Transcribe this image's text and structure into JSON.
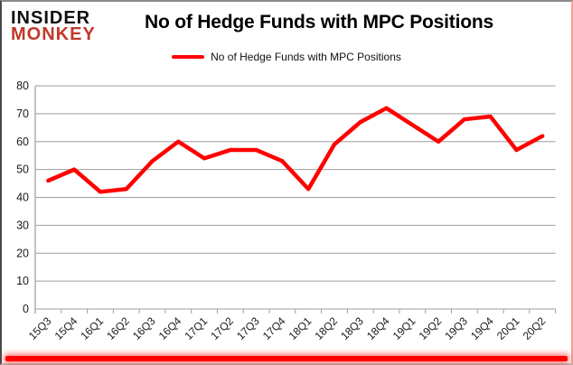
{
  "logo": {
    "line1": "INSIDER",
    "line2": "MONKEY"
  },
  "title": "No of Hedge Funds with MPC Positions",
  "legend": {
    "label": "No of Hedge Funds with MPC Positions"
  },
  "colors": {
    "line": "#ff0000",
    "logo_red": "#c0392b",
    "accent_bar": "#ff0000",
    "grid": "#9e9e9e",
    "axis_text": "#1a1a1a"
  },
  "chart_data": {
    "type": "line",
    "title": "No of Hedge Funds with MPC Positions",
    "categories": [
      "15Q3",
      "15Q4",
      "16Q1",
      "16Q2",
      "16Q3",
      "16Q4",
      "17Q1",
      "17Q2",
      "17Q3",
      "17Q4",
      "18Q1",
      "18Q2",
      "18Q3",
      "18Q4",
      "19Q1",
      "19Q2",
      "19Q3",
      "19Q4",
      "20Q1",
      "20Q2"
    ],
    "series": [
      {
        "name": "No of Hedge Funds with MPC Positions",
        "values": [
          46,
          50,
          42,
          43,
          53,
          60,
          54,
          57,
          57,
          53,
          43,
          59,
          67,
          72,
          66,
          60,
          68,
          69,
          57,
          62
        ]
      }
    ],
    "ylim": [
      0,
      80
    ],
    "ytick_step": 10,
    "grid": true,
    "legend_position": "top"
  }
}
